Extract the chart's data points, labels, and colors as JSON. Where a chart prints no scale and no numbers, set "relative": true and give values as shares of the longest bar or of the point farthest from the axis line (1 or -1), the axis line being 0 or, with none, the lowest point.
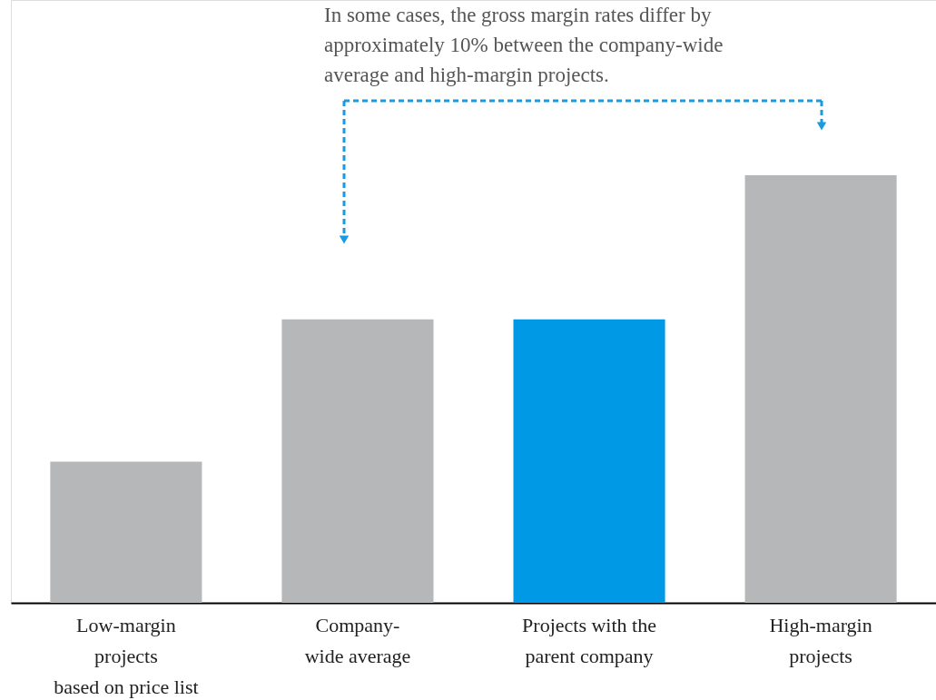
{
  "chart_data": {
    "type": "bar",
    "relative": true,
    "categories": [
      "Low-margin\nprojects\nbased on price list",
      "Company-\nwide average",
      "Projects with the\nparent company",
      "High-margin\nprojects"
    ],
    "values": [
      0.33,
      0.663,
      0.663,
      1
    ],
    "colors": [
      "#b6b7b9",
      "#b6b7b9",
      "#0099e6",
      "#b6b7b9"
    ],
    "annotations": [
      "In some cases, the gross margin rates differ by approximately 10% between the company-wide average and high-margin projects."
    ],
    "grid": false
  }
}
